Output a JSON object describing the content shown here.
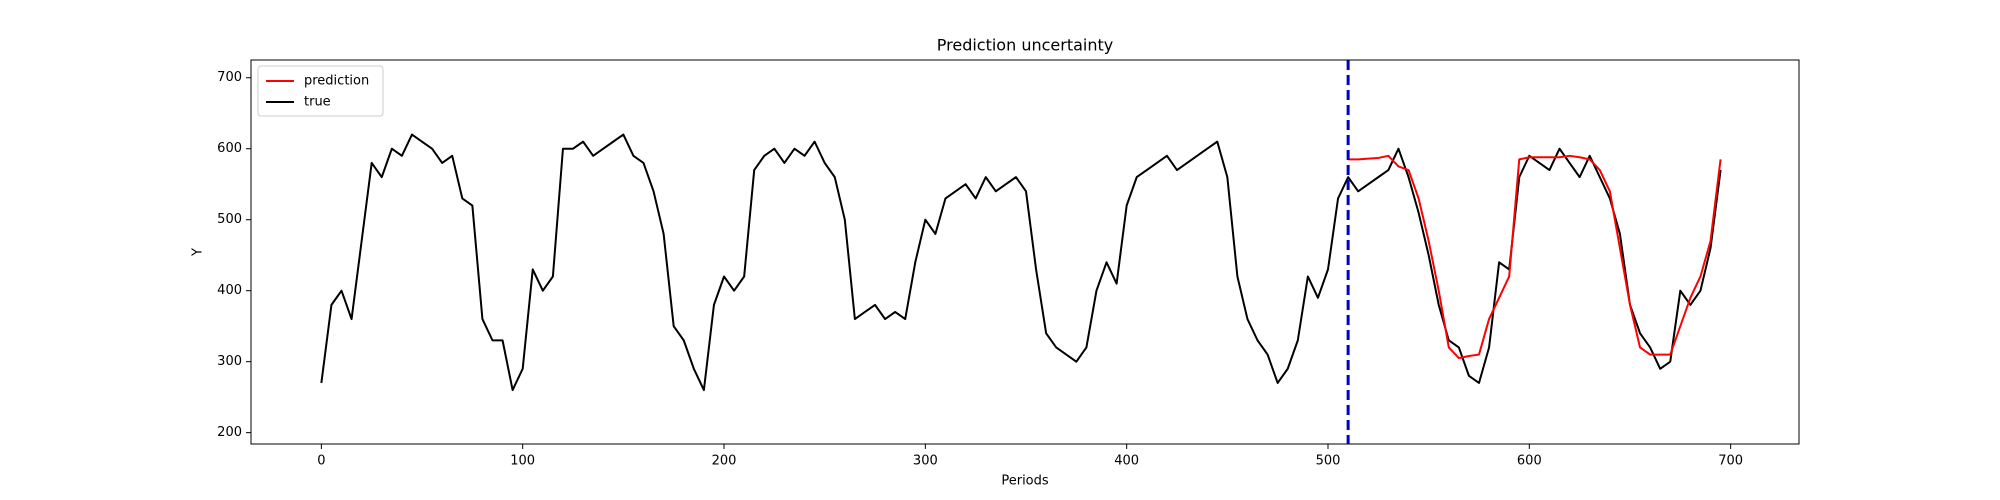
{
  "chart_data": {
    "type": "line",
    "title": "Prediction uncertainty",
    "x_label": "Periods",
    "y_label": "Y",
    "xlim": [
      -34.95,
      733.95
    ],
    "ylim": [
      184,
      725
    ],
    "xticks": [
      0,
      100,
      200,
      300,
      400,
      500,
      600,
      700
    ],
    "yticks": [
      200,
      300,
      400,
      500,
      600,
      700
    ],
    "legend": "upper left",
    "vline": {
      "x": 510,
      "color": "#0000cc"
    },
    "series": [
      {
        "name": "prediction",
        "color": "#ff0000",
        "x": [
          510,
          515,
          520,
          525,
          530,
          535,
          540,
          545,
          550,
          555,
          560,
          565,
          570,
          575,
          580,
          585,
          590,
          595,
          600,
          605,
          610,
          615,
          620,
          625,
          630,
          635,
          640,
          645,
          650,
          655,
          660,
          665,
          670,
          675,
          680,
          685,
          690,
          695
        ],
        "values": [
          585,
          585,
          586,
          587,
          590,
          575,
          570,
          530,
          470,
          400,
          320,
          305,
          308,
          310,
          360,
          390,
          420,
          585,
          588,
          588,
          588,
          588,
          590,
          588,
          585,
          570,
          540,
          460,
          380,
          320,
          310,
          310,
          310,
          350,
          390,
          420,
          470,
          585
        ]
      },
      {
        "name": "true",
        "color": "#000000",
        "x": [
          0,
          5,
          10,
          15,
          20,
          25,
          30,
          35,
          40,
          45,
          50,
          55,
          60,
          65,
          70,
          75,
          80,
          85,
          90,
          95,
          100,
          105,
          110,
          115,
          120,
          125,
          130,
          135,
          140,
          145,
          150,
          155,
          160,
          165,
          170,
          175,
          180,
          185,
          190,
          195,
          200,
          205,
          210,
          215,
          220,
          225,
          230,
          235,
          240,
          245,
          250,
          255,
          260,
          265,
          270,
          275,
          280,
          285,
          290,
          295,
          300,
          305,
          310,
          315,
          320,
          325,
          330,
          335,
          340,
          345,
          350,
          355,
          360,
          365,
          370,
          375,
          380,
          385,
          390,
          395,
          400,
          405,
          410,
          415,
          420,
          425,
          430,
          435,
          440,
          445,
          450,
          455,
          460,
          465,
          470,
          475,
          480,
          485,
          490,
          495,
          500,
          505,
          510,
          515,
          520,
          525,
          530,
          535,
          540,
          545,
          550,
          555,
          560,
          565,
          570,
          575,
          580,
          585,
          590,
          595,
          600,
          605,
          610,
          615,
          620,
          625,
          630,
          635,
          640,
          645,
          650,
          655,
          660,
          665,
          670,
          675,
          680,
          685,
          690,
          695
        ],
        "values": [
          270,
          380,
          400,
          360,
          470,
          580,
          560,
          600,
          590,
          620,
          610,
          600,
          580,
          590,
          530,
          520,
          360,
          330,
          330,
          260,
          290,
          430,
          400,
          420,
          600,
          600,
          610,
          590,
          600,
          610,
          620,
          590,
          580,
          540,
          480,
          350,
          330,
          290,
          260,
          380,
          420,
          400,
          420,
          570,
          590,
          600,
          580,
          600,
          590,
          610,
          580,
          560,
          500,
          360,
          370,
          380,
          360,
          370,
          360,
          440,
          500,
          480,
          530,
          540,
          550,
          530,
          560,
          540,
          550,
          560,
          540,
          430,
          340,
          320,
          310,
          300,
          320,
          400,
          440,
          410,
          520,
          560,
          570,
          580,
          590,
          570,
          580,
          590,
          600,
          610,
          560,
          420,
          360,
          330,
          310,
          270,
          290,
          330,
          420,
          390,
          430,
          530,
          560,
          540,
          550,
          560,
          570,
          600,
          560,
          510,
          450,
          380,
          330,
          320,
          280,
          270,
          320,
          440,
          430,
          560,
          590,
          580,
          570,
          600,
          580,
          560,
          590,
          560,
          530,
          480,
          380,
          340,
          320,
          290,
          300,
          400,
          380,
          400,
          460,
          570
        ]
      }
    ]
  }
}
